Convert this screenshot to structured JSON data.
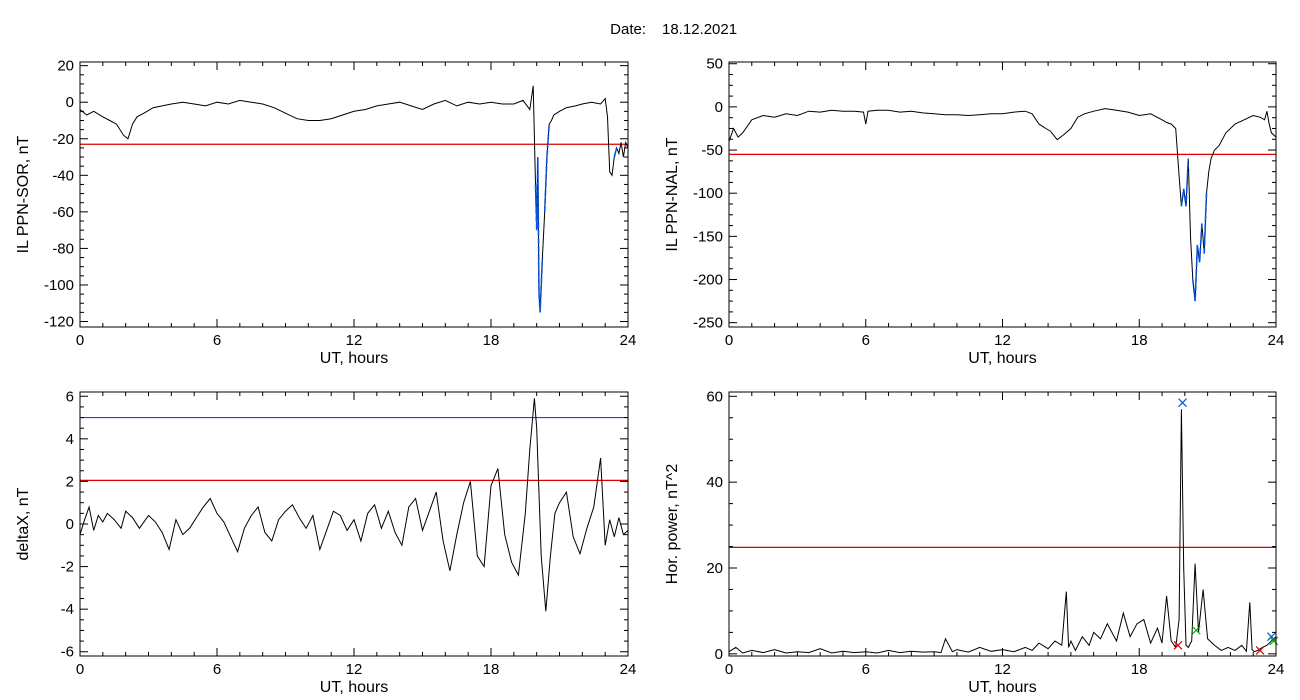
{
  "header": {
    "date_label": "Date:",
    "date_value": "18.12.2021"
  },
  "colors": {
    "trace": "#000000",
    "threshold_red": "#dd0000",
    "highlight_blue": "#0055ee",
    "marker_green": "#00aa00"
  },
  "chart_data": [
    {
      "type": "line",
      "xlabel": "UT, hours",
      "ylabel": "IL PPN-SOR, nT",
      "xlim": [
        0,
        24
      ],
      "ylim": [
        -123,
        22
      ],
      "xticks": [
        0,
        6,
        12,
        18,
        24
      ],
      "yticks": [
        20,
        0,
        -20,
        -40,
        -60,
        -80,
        -100,
        -120
      ],
      "threshold": -23,
      "series": [
        {
          "x": [
            0,
            0.3,
            0.6,
            1,
            1.3,
            1.6,
            1.9,
            2.1,
            2.3,
            2.5,
            2.8,
            3.2,
            3.6,
            4,
            4.5,
            5,
            5.5,
            6,
            6.5,
            7,
            7.5,
            8,
            8.5,
            9,
            9.5,
            10,
            10.5,
            11,
            11.5,
            12,
            12.5,
            13,
            13.5,
            14,
            14.5,
            15,
            15.5,
            16,
            16.5,
            17,
            17.5,
            18,
            18.5,
            19,
            19.4,
            19.7,
            19.85,
            19.95,
            20.0,
            20.05,
            20.1,
            20.15,
            20.25,
            20.35,
            20.45,
            20.55,
            20.65,
            20.75,
            21,
            21.3,
            21.7,
            22,
            22.4,
            22.8,
            23,
            23.1,
            23.2,
            23.3,
            23.4,
            23.5,
            23.6,
            23.7,
            23.8,
            23.9,
            24
          ],
          "y": [
            -4,
            -7,
            -5,
            -8,
            -10,
            -12,
            -18,
            -20,
            -12,
            -8,
            -6,
            -3,
            -2,
            -1,
            0,
            -1,
            -2,
            0,
            -1,
            1,
            0,
            -1,
            -3,
            -6,
            -9,
            -10,
            -10,
            -9,
            -7,
            -5,
            -4,
            -2,
            -1,
            0,
            -2,
            -4,
            -1,
            1,
            -2,
            0,
            -1,
            0,
            -1,
            -1,
            1,
            -4,
            9,
            -45,
            -70,
            -30,
            -105,
            -115,
            -85,
            -60,
            -30,
            -12,
            -10,
            -7,
            -5,
            -3,
            -2,
            -1,
            0,
            -1,
            2,
            -8,
            -38,
            -40,
            -30,
            -25,
            -28,
            -22,
            -30,
            -22,
            -25
          ],
          "highlight": [
            [
              19.93,
              20.25
            ],
            [
              20.3,
              20.6
            ],
            [
              23.4,
              23.5
            ]
          ]
        }
      ]
    },
    {
      "type": "line",
      "xlabel": "UT, hours",
      "ylabel": "IL PPN-NAL, nT",
      "xlim": [
        0,
        24
      ],
      "ylim": [
        -255,
        52
      ],
      "xticks": [
        0,
        6,
        12,
        18,
        24
      ],
      "yticks": [
        50,
        0,
        -50,
        -100,
        -150,
        -200,
        -250
      ],
      "threshold": -55,
      "series": [
        {
          "x": [
            0,
            0.2,
            0.4,
            0.6,
            1,
            1.5,
            2,
            2.5,
            3,
            3.5,
            4,
            4.5,
            5,
            5.5,
            5.9,
            6,
            6.1,
            6.5,
            7,
            7.5,
            8,
            8.5,
            9,
            9.5,
            10,
            10.5,
            11,
            11.5,
            12,
            12.5,
            13,
            13.3,
            13.6,
            13.9,
            14.1,
            14.4,
            14.7,
            15,
            15.3,
            15.6,
            16,
            16.5,
            17,
            17.5,
            18,
            18.5,
            19,
            19.2,
            19.4,
            19.6,
            19.75,
            19.85,
            19.95,
            20.05,
            20.15,
            20.25,
            20.35,
            20.45,
            20.55,
            20.65,
            20.75,
            20.85,
            20.95,
            21.05,
            21.15,
            21.3,
            21.5,
            21.8,
            22.2,
            22.6,
            23,
            23.3,
            23.5,
            23.6,
            23.7,
            23.8,
            24
          ],
          "y": [
            -40,
            -25,
            -35,
            -30,
            -15,
            -10,
            -12,
            -8,
            -10,
            -5,
            -6,
            -4,
            -5,
            -5,
            -6,
            -20,
            -5,
            -4,
            -4,
            -6,
            -5,
            -7,
            -8,
            -9,
            -9,
            -10,
            -9,
            -8,
            -8,
            -6,
            -5,
            -8,
            -20,
            -25,
            -28,
            -38,
            -32,
            -25,
            -12,
            -8,
            -5,
            -2,
            -4,
            -6,
            -10,
            -8,
            -15,
            -18,
            -20,
            -25,
            -80,
            -115,
            -95,
            -115,
            -60,
            -150,
            -200,
            -225,
            -160,
            -180,
            -135,
            -170,
            -100,
            -75,
            -60,
            -50,
            -45,
            -30,
            -20,
            -15,
            -10,
            -12,
            -15,
            -5,
            -20,
            -30,
            -35
          ],
          "highlight": [
            [
              19.78,
              20.2
            ],
            [
              20.3,
              20.8
            ],
            [
              20.85,
              21.0
            ]
          ]
        }
      ]
    },
    {
      "type": "line",
      "xlabel": "UT, hours",
      "ylabel": "deltaX, nT",
      "xlim": [
        0,
        24
      ],
      "ylim": [
        -6.2,
        6.2
      ],
      "xticks": [
        0,
        6,
        12,
        18,
        24
      ],
      "yticks": [
        6,
        4,
        2,
        0,
        -2,
        -4,
        -6
      ],
      "threshold": 2.05,
      "upper_threshold": 5,
      "series": [
        {
          "x": [
            0,
            0.2,
            0.4,
            0.6,
            0.8,
            1,
            1.2,
            1.5,
            1.8,
            2.0,
            2.3,
            2.6,
            3,
            3.3,
            3.6,
            3.9,
            4.2,
            4.5,
            4.8,
            5.1,
            5.4,
            5.7,
            6,
            6.3,
            6.6,
            6.9,
            7.2,
            7.5,
            7.8,
            8.1,
            8.4,
            8.7,
            9.0,
            9.3,
            9.6,
            9.9,
            10.2,
            10.5,
            10.8,
            11.1,
            11.4,
            11.7,
            12,
            12.3,
            12.6,
            12.9,
            13.2,
            13.5,
            13.8,
            14.1,
            14.4,
            14.7,
            15,
            15.3,
            15.6,
            15.9,
            16.2,
            16.5,
            16.8,
            17.1,
            17.4,
            17.7,
            18,
            18.3,
            18.6,
            18.9,
            19.2,
            19.5,
            19.7,
            19.9,
            20.0,
            20.2,
            20.4,
            20.6,
            20.8,
            21,
            21.3,
            21.6,
            21.9,
            22.2,
            22.5,
            22.8,
            23,
            23.2,
            23.4,
            23.6,
            23.8,
            24
          ],
          "y": [
            -0.5,
            0.2,
            0.8,
            -0.3,
            0.4,
            0.1,
            0.5,
            0.2,
            -0.2,
            0.6,
            0.3,
            -0.2,
            0.4,
            0.1,
            -0.4,
            -1.2,
            0.2,
            -0.5,
            -0.2,
            0.3,
            0.8,
            1.2,
            0.5,
            0.1,
            -0.6,
            -1.3,
            -0.2,
            0.4,
            0.8,
            -0.4,
            -0.8,
            0.2,
            0.6,
            0.9,
            0.3,
            -0.2,
            0.4,
            -1.2,
            -0.3,
            0.6,
            0.4,
            -0.3,
            0.2,
            -0.8,
            0.5,
            0.9,
            -0.2,
            0.6,
            -0.4,
            -1.0,
            0.8,
            1.2,
            -0.3,
            0.6,
            1.5,
            -0.8,
            -2.2,
            -0.5,
            1.0,
            2.0,
            -1.5,
            -2.0,
            1.8,
            2.6,
            -0.5,
            -1.8,
            -2.4,
            0.5,
            3.5,
            5.9,
            4.5,
            -1.5,
            -4.1,
            -1.5,
            0.5,
            1.0,
            1.5,
            -0.6,
            -1.4,
            -0.2,
            0.8,
            3.1,
            -1.0,
            0.2,
            -0.6,
            0.3,
            -0.5,
            -0.3
          ]
        }
      ]
    },
    {
      "type": "line",
      "xlabel": "UT, hours",
      "ylabel": "Hor. power, nT^2",
      "xlim": [
        0,
        24
      ],
      "ylim": [
        -0.5,
        61
      ],
      "xticks": [
        0,
        6,
        12,
        18,
        24
      ],
      "yticks": [
        60,
        40,
        20,
        0
      ],
      "threshold": 24.8,
      "series": [
        {
          "x": [
            0,
            0.3,
            0.6,
            1,
            1.5,
            2,
            2.5,
            3,
            3.5,
            4,
            4.5,
            5,
            5.5,
            6,
            6.5,
            7,
            7.5,
            8,
            8.5,
            9,
            9.3,
            9.5,
            9.8,
            10,
            10.5,
            11,
            11.5,
            12,
            12.5,
            13,
            13.3,
            13.6,
            14,
            14.3,
            14.6,
            14.8,
            14.9,
            15,
            15.2,
            15.5,
            15.8,
            16,
            16.3,
            16.6,
            17,
            17.3,
            17.6,
            17.9,
            18.2,
            18.5,
            18.8,
            19.0,
            19.2,
            19.4,
            19.6,
            19.75,
            19.85,
            19.95,
            20.05,
            20.15,
            20.3,
            20.45,
            20.6,
            20.8,
            21.0,
            21.3,
            21.6,
            21.9,
            22.2,
            22.5,
            22.7,
            22.85,
            22.95,
            23.05,
            23.2,
            23.4,
            23.6,
            23.8,
            24
          ],
          "y": [
            0.5,
            1.5,
            0.2,
            0.8,
            0.3,
            1.0,
            0.2,
            0.5,
            0.3,
            1.2,
            0.2,
            0.6,
            0.3,
            0.5,
            0.2,
            0.8,
            0.3,
            0.6,
            0.4,
            0.5,
            0.3,
            3.5,
            0.5,
            1.0,
            0.4,
            1.5,
            0.6,
            1.0,
            0.5,
            1.5,
            0.8,
            2.5,
            1.2,
            3.0,
            2.0,
            14.5,
            1.5,
            3.0,
            0.8,
            4.0,
            2.0,
            5.0,
            3.5,
            7.0,
            3.0,
            9.5,
            4.0,
            7.0,
            8.0,
            2.5,
            6.0,
            2.5,
            13.5,
            3.0,
            1.5,
            8.0,
            57.0,
            20.0,
            2.0,
            1.5,
            3.0,
            21.0,
            5.0,
            15.0,
            3.5,
            2.0,
            0.8,
            1.5,
            0.8,
            2.0,
            0.6,
            12.0,
            1.0,
            0.5,
            0.8,
            1.5,
            2.0,
            3.0,
            4.0
          ]
        }
      ],
      "markers": [
        {
          "x": 19.9,
          "y": 58.5,
          "color": "blue"
        },
        {
          "x": 19.7,
          "y": 2.0,
          "color": "red"
        },
        {
          "x": 20.5,
          "y": 5.5,
          "color": "green"
        },
        {
          "x": 23.3,
          "y": 0.8,
          "color": "red"
        },
        {
          "x": 23.8,
          "y": 4.0,
          "color": "blue"
        },
        {
          "x": 23.9,
          "y": 3.0,
          "color": "green"
        }
      ]
    }
  ]
}
